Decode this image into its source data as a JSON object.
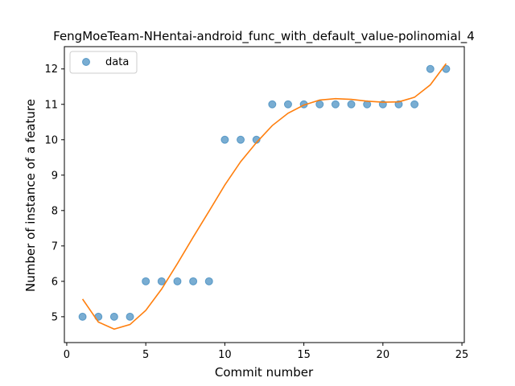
{
  "chart_data": {
    "type": "scatter",
    "title": "FengMoeTeam-NHentai-android_func_with_default_value-polinomial_4",
    "xlabel": "Commit number",
    "ylabel": "Number of instance of a feature",
    "xlim": [
      -0.15,
      25.15
    ],
    "ylim": [
      4.27,
      12.63
    ],
    "x_ticks": [
      0,
      5,
      10,
      15,
      20,
      25
    ],
    "y_ticks": [
      5,
      6,
      7,
      8,
      9,
      10,
      11,
      12
    ],
    "legend": {
      "position": "upper-left",
      "entries": [
        "data"
      ]
    },
    "colors": {
      "data": "#1f77b4",
      "fit": "#ff7f0e"
    },
    "series": [
      {
        "name": "data",
        "kind": "points",
        "x": [
          1,
          2,
          3,
          4,
          5,
          6,
          7,
          8,
          9,
          10,
          11,
          12,
          13,
          14,
          15,
          16,
          17,
          18,
          19,
          20,
          21,
          22,
          23,
          24
        ],
        "y": [
          5,
          5,
          5,
          5,
          6,
          6,
          6,
          6,
          6,
          10,
          10,
          10,
          11,
          11,
          11,
          11,
          11,
          11,
          11,
          11,
          11,
          11,
          12,
          12
        ]
      },
      {
        "kind": "line",
        "x": [
          1,
          2,
          3,
          4,
          5,
          6,
          7,
          8,
          9,
          10,
          11,
          12,
          13,
          14,
          15,
          16,
          17,
          18,
          19,
          20,
          21,
          22,
          23,
          24
        ],
        "y": [
          5.5,
          4.85,
          4.65,
          4.78,
          5.18,
          5.78,
          6.5,
          7.25,
          7.98,
          8.72,
          9.38,
          9.92,
          10.4,
          10.75,
          10.98,
          11.12,
          11.16,
          11.14,
          11.09,
          11.06,
          11.07,
          11.2,
          11.55,
          12.15
        ]
      }
    ]
  }
}
